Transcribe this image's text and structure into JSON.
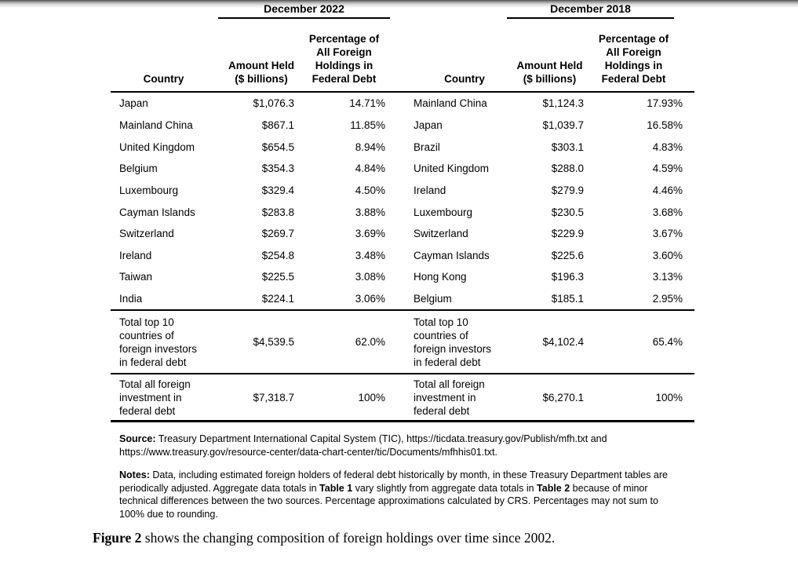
{
  "page": {
    "tables": [
      {
        "period": "December 2022",
        "columns": {
          "country": "Country",
          "amount": [
            "Amount Held",
            "($ billions)"
          ],
          "pct": [
            "Percentage of",
            "All Foreign",
            "Holdings in",
            "Federal Debt"
          ]
        },
        "rows": [
          {
            "country": "Japan",
            "amount": "$1,076.3",
            "pct": "14.71%"
          },
          {
            "country": "Mainland China",
            "amount": "$867.1",
            "pct": "11.85%"
          },
          {
            "country": "United Kingdom",
            "amount": "$654.5",
            "pct": "8.94%"
          },
          {
            "country": "Belgium",
            "amount": "$354.3",
            "pct": "4.84%"
          },
          {
            "country": "Luxembourg",
            "amount": "$329.4",
            "pct": "4.50%"
          },
          {
            "country": "Cayman Islands",
            "amount": "$283.8",
            "pct": "3.88%"
          },
          {
            "country": "Switzerland",
            "amount": "$269.7",
            "pct": "3.69%"
          },
          {
            "country": "Ireland",
            "amount": "$254.8",
            "pct": "3.48%"
          },
          {
            "country": "Taiwan",
            "amount": "$225.5",
            "pct": "3.08%"
          },
          {
            "country": "India",
            "amount": "$224.1",
            "pct": "3.06%"
          }
        ],
        "totals": [
          {
            "label_lines": [
              "Total top 10",
              "countries of",
              "foreign investors",
              "in federal debt"
            ],
            "amount": "$4,539.5",
            "pct": "62.0%"
          },
          {
            "label_lines": [
              "Total all foreign",
              "investment in",
              "federal debt"
            ],
            "amount": "$7,318.7",
            "pct": "100%"
          }
        ]
      },
      {
        "period": "December 2018",
        "columns": {
          "country": "Country",
          "amount": [
            "Amount Held",
            "($ billions)"
          ],
          "pct": [
            "Percentage of",
            "All Foreign",
            "Holdings in",
            "Federal Debt"
          ]
        },
        "rows": [
          {
            "country": "Mainland China",
            "amount": "$1,124.3",
            "pct": "17.93%"
          },
          {
            "country": "Japan",
            "amount": "$1,039.7",
            "pct": "16.58%"
          },
          {
            "country": "Brazil",
            "amount": "$303.1",
            "pct": "4.83%"
          },
          {
            "country": "United Kingdom",
            "amount": "$288.0",
            "pct": "4.59%"
          },
          {
            "country": "Ireland",
            "amount": "$279.9",
            "pct": "4.46%"
          },
          {
            "country": "Luxembourg",
            "amount": "$230.5",
            "pct": "3.68%"
          },
          {
            "country": "Switzerland",
            "amount": "$229.9",
            "pct": "3.67%"
          },
          {
            "country": "Cayman Islands",
            "amount": "$225.6",
            "pct": "3.60%"
          },
          {
            "country": "Hong Kong",
            "amount": "$196.3",
            "pct": "3.13%"
          },
          {
            "country": "Belgium",
            "amount": "$185.1",
            "pct": "2.95%"
          }
        ],
        "totals": [
          {
            "label_lines": [
              "Total top 10",
              "countries of",
              "foreign investors",
              "in federal debt"
            ],
            "amount": "$4,102.4",
            "pct": "65.4%"
          },
          {
            "label_lines": [
              "Total all foreign",
              "investment in",
              "federal debt"
            ],
            "amount": "$6,270.1",
            "pct": "100%"
          }
        ]
      }
    ],
    "source": {
      "label": "Source:",
      "text": " Treasury Department International Capital System (TIC), https://ticdata.treasury.gov/Publish/mfh.txt and https://www.treasury.gov/resource-center/data-chart-center/tic/Documents/mfhhis01.txt."
    },
    "notes": {
      "label": "Notes:",
      "part1": " Data, including estimated foreign holders of federal debt historically by month, in these Treasury Department tables are periodically adjusted. Aggregate data totals in ",
      "bold1": "Table 1",
      "part2": " vary slightly from aggregate data totals in ",
      "bold2": "Table 2",
      "part3": " because of minor technical differences between the two sources. Percentage approximations calculated by CRS. Percentages may not sum to 100% due to rounding."
    },
    "figure_caption": {
      "label": "Figure 2",
      "text": " shows the changing composition of foreign holdings over time since 2002."
    }
  }
}
